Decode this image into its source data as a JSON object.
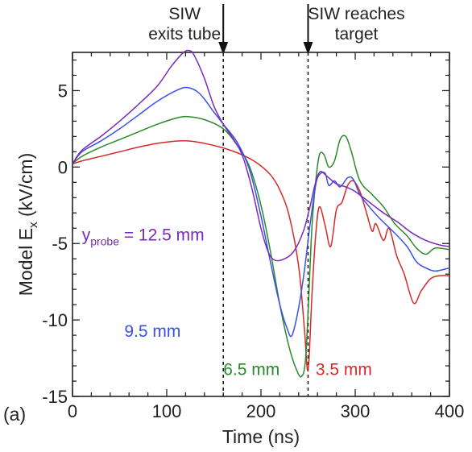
{
  "chart_data": {
    "type": "line",
    "panel_label": "(a)",
    "xlabel": "Time (ns)",
    "ylabel_parts": {
      "before": "Model E",
      "sub": "x",
      "after": " (kV/cm)"
    },
    "xlim": [
      0,
      400
    ],
    "ylim": [
      -15,
      7.5
    ],
    "x_ticks": [
      0,
      100,
      200,
      300,
      400
    ],
    "y_ticks": [
      5,
      0,
      -5,
      -10,
      -15
    ],
    "grid": false,
    "annotations": [
      {
        "lines": [
          "SIW",
          "exits tube"
        ],
        "x": 160
      },
      {
        "lines": [
          "SIW reaches",
          "target"
        ],
        "x": 250
      }
    ],
    "series": [
      {
        "name": "3.5 mm",
        "color": "#d62a2a",
        "points": [
          [
            0,
            0.2
          ],
          [
            10,
            0.4
          ],
          [
            30,
            0.7
          ],
          [
            50,
            1.0
          ],
          [
            70,
            1.3
          ],
          [
            90,
            1.55
          ],
          [
            110,
            1.7
          ],
          [
            125,
            1.7
          ],
          [
            140,
            1.55
          ],
          [
            160,
            1.25
          ],
          [
            180,
            0.8
          ],
          [
            195,
            0.3
          ],
          [
            210,
            -0.5
          ],
          [
            220,
            -1.5
          ],
          [
            230,
            -3.2
          ],
          [
            240,
            -6.5
          ],
          [
            246,
            -10.5
          ],
          [
            250,
            -13.3
          ],
          [
            254,
            -8.5
          ],
          [
            258,
            -4.5
          ],
          [
            262,
            -2.6
          ],
          [
            268,
            -3.8
          ],
          [
            274,
            -5.2
          ],
          [
            280,
            -2.8
          ],
          [
            286,
            -2.3
          ],
          [
            292,
            -1.2
          ],
          [
            298,
            -0.9
          ],
          [
            305,
            -1.6
          ],
          [
            312,
            -3.0
          ],
          [
            318,
            -4.2
          ],
          [
            322,
            -3.7
          ],
          [
            330,
            -4.8
          ],
          [
            336,
            -4.0
          ],
          [
            344,
            -5.8
          ],
          [
            352,
            -7.0
          ],
          [
            362,
            -8.9
          ],
          [
            370,
            -8.1
          ],
          [
            380,
            -7.3
          ],
          [
            390,
            -7.1
          ],
          [
            400,
            -7.1
          ]
        ]
      },
      {
        "name": "6.5 mm",
        "color": "#2a8a2a",
        "points": [
          [
            0,
            0.2
          ],
          [
            10,
            0.7
          ],
          [
            30,
            1.3
          ],
          [
            50,
            1.8
          ],
          [
            70,
            2.3
          ],
          [
            90,
            2.8
          ],
          [
            110,
            3.2
          ],
          [
            122,
            3.3
          ],
          [
            140,
            3.1
          ],
          [
            160,
            2.5
          ],
          [
            175,
            1.4
          ],
          [
            188,
            0.0
          ],
          [
            200,
            -2.5
          ],
          [
            210,
            -5.5
          ],
          [
            220,
            -9.0
          ],
          [
            230,
            -11.8
          ],
          [
            238,
            -13.3
          ],
          [
            243,
            -13.7
          ],
          [
            247,
            -12.8
          ],
          [
            250,
            -9.5
          ],
          [
            254,
            -4.0
          ],
          [
            258,
            -1.0
          ],
          [
            262,
            0.8
          ],
          [
            267,
            0.8
          ],
          [
            272,
            0.0
          ],
          [
            278,
            0.4
          ],
          [
            284,
            1.8
          ],
          [
            290,
            2.0
          ],
          [
            296,
            1.0
          ],
          [
            305,
            -0.9
          ],
          [
            318,
            -1.8
          ],
          [
            330,
            -2.6
          ],
          [
            342,
            -3.7
          ],
          [
            355,
            -4.5
          ],
          [
            365,
            -5.3
          ],
          [
            375,
            -5.7
          ],
          [
            385,
            -5.3
          ],
          [
            400,
            -5.4
          ]
        ]
      },
      {
        "name": "9.5 mm",
        "color": "#3a50e8",
        "points": [
          [
            0,
            0.2
          ],
          [
            10,
            1.0
          ],
          [
            30,
            1.7
          ],
          [
            50,
            2.5
          ],
          [
            70,
            3.4
          ],
          [
            90,
            4.3
          ],
          [
            110,
            5.0
          ],
          [
            122,
            5.2
          ],
          [
            135,
            4.8
          ],
          [
            150,
            3.6
          ],
          [
            160,
            2.8
          ],
          [
            175,
            1.6
          ],
          [
            188,
            -0.2
          ],
          [
            200,
            -3.2
          ],
          [
            210,
            -6.2
          ],
          [
            220,
            -9.0
          ],
          [
            228,
            -10.6
          ],
          [
            233,
            -11.0
          ],
          [
            240,
            -9.2
          ],
          [
            246,
            -6.8
          ],
          [
            252,
            -3.8
          ],
          [
            258,
            -1.2
          ],
          [
            262,
            -0.5
          ],
          [
            268,
            -0.4
          ],
          [
            272,
            -1.2
          ],
          [
            278,
            -0.9
          ],
          [
            284,
            -1.3
          ],
          [
            292,
            -0.7
          ],
          [
            298,
            -0.8
          ],
          [
            305,
            -1.8
          ],
          [
            315,
            -2.6
          ],
          [
            325,
            -3.3
          ],
          [
            340,
            -4.2
          ],
          [
            355,
            -5.2
          ],
          [
            365,
            -6.2
          ],
          [
            375,
            -6.6
          ],
          [
            385,
            -6.8
          ],
          [
            400,
            -6.6
          ]
        ]
      },
      {
        "name": "12.5 mm",
        "color": "#7a2ab8",
        "label_prefix": "y",
        "label_sub": "probe",
        "label_suffix": " = 12.5 mm",
        "points": [
          [
            0,
            0.2
          ],
          [
            10,
            1.1
          ],
          [
            30,
            2.0
          ],
          [
            50,
            3.0
          ],
          [
            70,
            4.1
          ],
          [
            90,
            5.3
          ],
          [
            105,
            6.6
          ],
          [
            118,
            7.5
          ],
          [
            125,
            7.6
          ],
          [
            130,
            7.2
          ],
          [
            140,
            5.8
          ],
          [
            150,
            4.0
          ],
          [
            160,
            2.8
          ],
          [
            170,
            1.9
          ],
          [
            180,
            0.8
          ],
          [
            190,
            -1.3
          ],
          [
            200,
            -4.0
          ],
          [
            208,
            -5.6
          ],
          [
            215,
            -6.1
          ],
          [
            225,
            -6.0
          ],
          [
            235,
            -5.5
          ],
          [
            245,
            -4.2
          ],
          [
            252,
            -2.6
          ],
          [
            258,
            -1.0
          ],
          [
            263,
            -0.3
          ],
          [
            270,
            -0.6
          ],
          [
            280,
            -1.1
          ],
          [
            290,
            -1.3
          ],
          [
            300,
            -1.6
          ],
          [
            315,
            -2.3
          ],
          [
            330,
            -3.0
          ],
          [
            345,
            -3.6
          ],
          [
            360,
            -4.3
          ],
          [
            375,
            -4.8
          ],
          [
            390,
            -5.1
          ],
          [
            400,
            -5.2
          ]
        ]
      }
    ],
    "series_labels": [
      {
        "series": "12.5 mm",
        "x": 10,
        "y": -4.8
      },
      {
        "series": "9.5 mm",
        "x": 55,
        "y": -11.1
      },
      {
        "series": "6.5 mm",
        "x": 160,
        "y": -13.6
      },
      {
        "series": "3.5 mm",
        "x": 258,
        "y": -13.6
      }
    ]
  }
}
